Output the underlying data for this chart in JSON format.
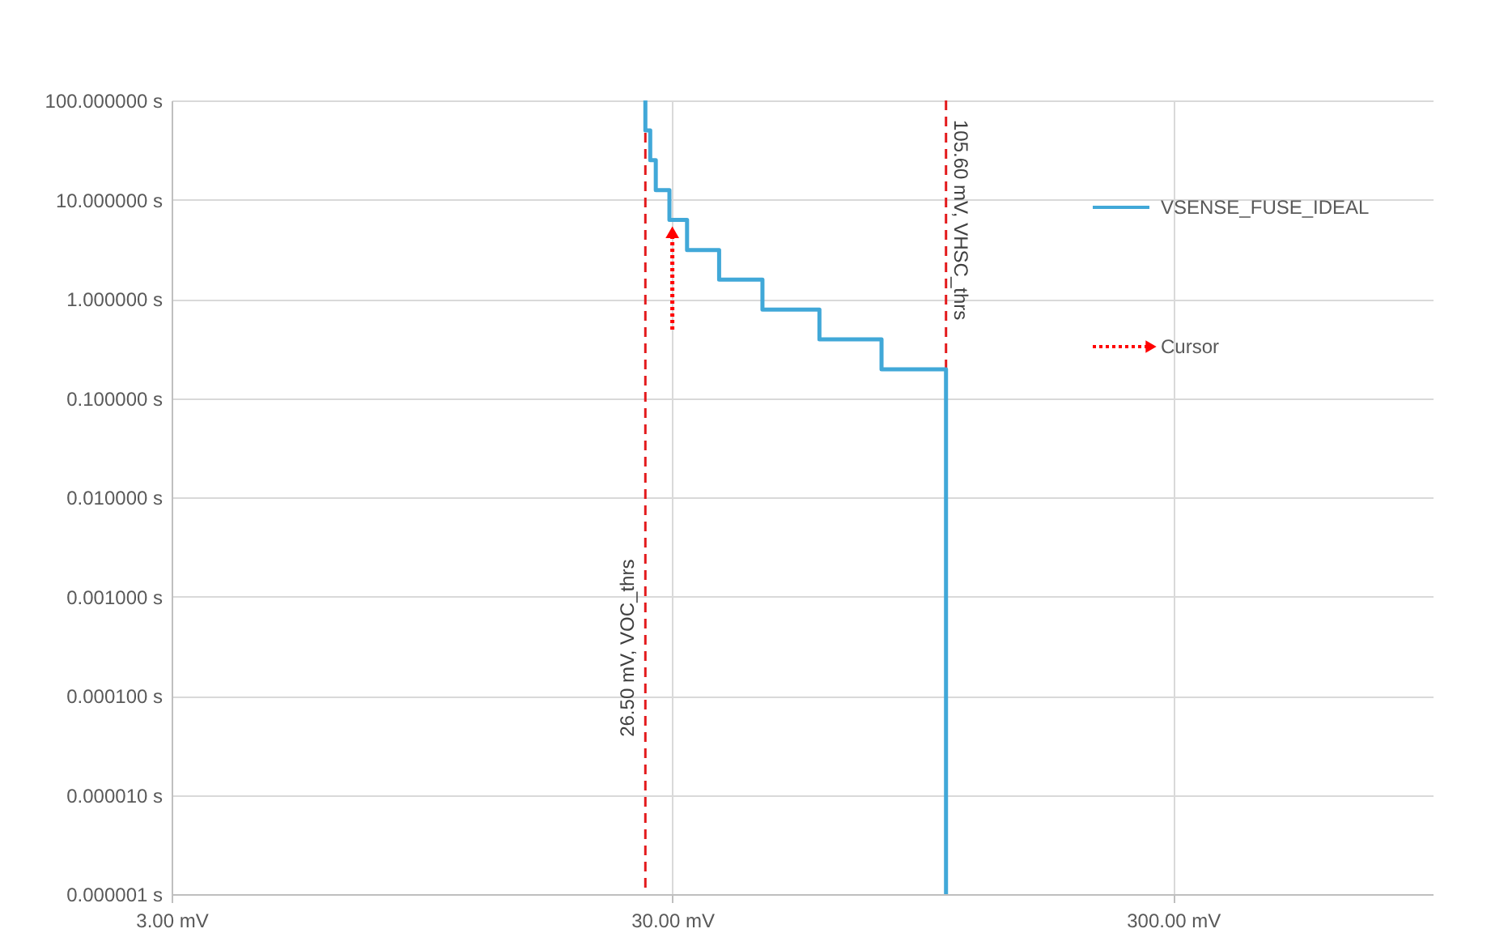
{
  "chart_data": {
    "type": "step",
    "series": [
      {
        "name": "VSENSE_FUSE_IDEAL",
        "color": "#41a8d8",
        "line_style": "solid",
        "x": [
          26.5,
          26.5,
          27.1,
          27.8,
          29.6,
          32.1,
          37.2,
          45.4,
          59,
          78.5,
          105.6
        ],
        "values": [
          100,
          50,
          25,
          12.5,
          6.25,
          3.1,
          1.56,
          0.78,
          0.39,
          0.195,
          1e-06
        ]
      },
      {
        "name": "Cursor",
        "color": "#ff0000",
        "line_style": "dotted",
        "marker": "triangle",
        "x": [
          30,
          30
        ],
        "values": [
          0.49,
          4.7
        ]
      }
    ],
    "log": "xy",
    "xlim": [
      3,
      990
    ],
    "ylim": [
      1e-06,
      100
    ],
    "xticks": [
      {
        "value": 3,
        "label": "3.00 mV"
      },
      {
        "value": 30,
        "label": "30.00 mV"
      },
      {
        "value": 300,
        "label": "300.00 mV"
      }
    ],
    "yticks": [
      {
        "value": 1e-06,
        "label": "0.000001 s"
      },
      {
        "value": 1e-05,
        "label": "0.000010 s"
      },
      {
        "value": 0.0001,
        "label": "0.000100 s"
      },
      {
        "value": 0.001,
        "label": "0.001000 s"
      },
      {
        "value": 0.01,
        "label": "0.010000 s"
      },
      {
        "value": 0.1,
        "label": "0.100000 s"
      },
      {
        "value": 1,
        "label": "1.000000 s"
      },
      {
        "value": 10,
        "label": "10.000000 s"
      },
      {
        "value": 100,
        "label": "100.000000 s"
      }
    ],
    "ref_lines": [
      {
        "axis": "x",
        "value": 26.5,
        "label": "26.50 mV, VOC_thrs",
        "color": "#e31a1c",
        "line_style": "dashed"
      },
      {
        "axis": "x",
        "value": 105.6,
        "label": "105.60 mV, VHSC_thrs",
        "color": "#e31a1c",
        "line_style": "dashed"
      }
    ],
    "grid": true,
    "legend": "top right"
  }
}
